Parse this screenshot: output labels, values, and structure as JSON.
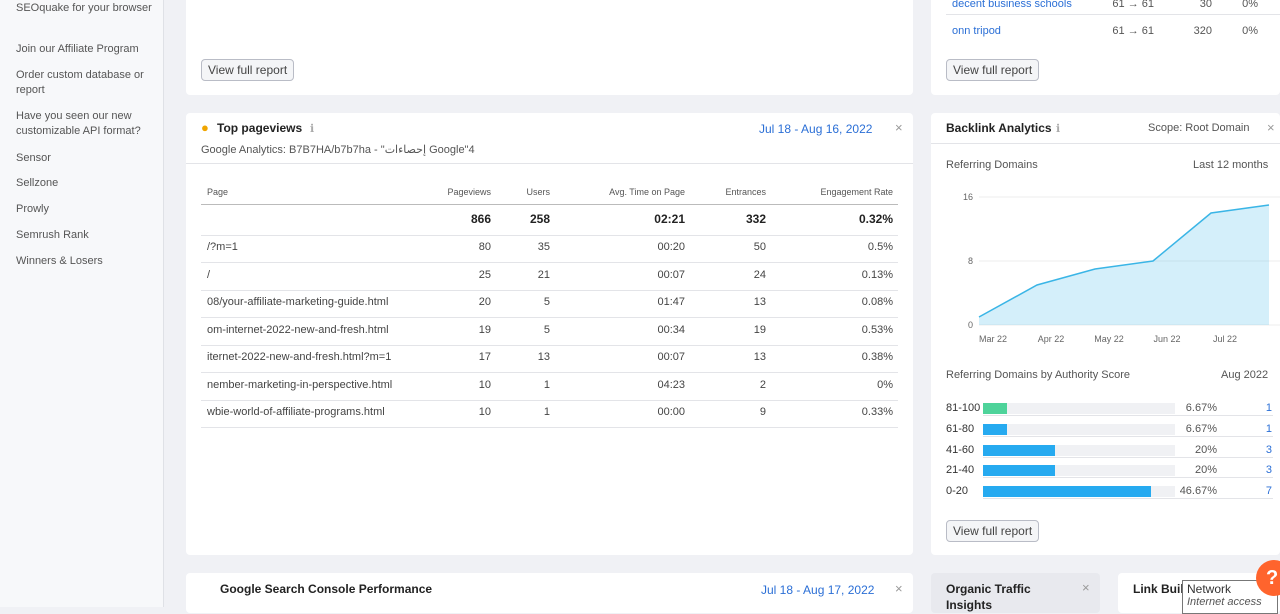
{
  "sidebar": {
    "items": [
      "SEOquake for your browser",
      "Join our Affiliate Program",
      "Order custom database or report",
      "Have you seen our new customizable API format?",
      "Sensor",
      "Sellzone",
      "Prowly",
      "Semrush Rank",
      "Winners & Losers"
    ]
  },
  "top_left": {
    "button": "View full report"
  },
  "top_right": {
    "rows": [
      {
        "keyword": "decent business schools",
        "position": "61 → 61",
        "volume": 30,
        "share": "0%"
      },
      {
        "keyword": "onn tripod",
        "position": "61 → 61",
        "volume": 320,
        "share": "0%"
      }
    ],
    "button": "View full report"
  },
  "pageviews": {
    "title": "Top pageviews",
    "date": "Jul 18 - Aug 16, 2022",
    "subtitle": "Google Analytics: B7B7HA/b7b7ha - \"إحصاءات Google\"4",
    "columns": [
      "Page",
      "Pageviews",
      "Users",
      "Avg. Time on Page",
      "Entrances",
      "Engagement Rate"
    ],
    "total": [
      866,
      258,
      "02:21",
      332,
      "0.32%"
    ],
    "rows": [
      [
        "/?m=1",
        80,
        35,
        "00:20",
        50,
        "0.5%"
      ],
      [
        "/",
        25,
        21,
        "00:07",
        24,
        "0.13%"
      ],
      [
        "08/your-affiliate-marketing-guide.html",
        20,
        5,
        "01:47",
        13,
        "0.08%"
      ],
      [
        "om-internet-2022-new-and-fresh.html",
        19,
        5,
        "00:34",
        19,
        "0.53%"
      ],
      [
        "iternet-2022-new-and-fresh.html?m=1",
        17,
        13,
        "00:07",
        13,
        "0.38%"
      ],
      [
        "nember-marketing-in-perspective.html",
        10,
        1,
        "04:23",
        2,
        "0%"
      ],
      [
        "wbie-world-of-affiliate-programs.html",
        10,
        1,
        "00:00",
        9,
        "0.33%"
      ]
    ]
  },
  "backlinks": {
    "title": "Backlink Analytics",
    "scope": "Scope: Root Domain",
    "referring_title": "Referring Domains",
    "period": "Last 12 months",
    "chart": {
      "type": "area",
      "categories": [
        "Mar 22",
        "Apr 22",
        "May 22",
        "Jun 22",
        "Jul 22",
        null
      ],
      "values": [
        1,
        5,
        7,
        8,
        14,
        15
      ],
      "ylim": [
        0,
        16
      ],
      "yticks": [
        0,
        8,
        16
      ],
      "color": "#3ab5e6"
    },
    "authority": {
      "title": "Referring Domains by Authority Score",
      "period": "Aug 2022",
      "rows": [
        {
          "range": "81-100",
          "pct": 6.67,
          "pct_label": "6.67%",
          "count": 1,
          "color": "#4ed39a"
        },
        {
          "range": "61-80",
          "pct": 6.67,
          "pct_label": "6.67%",
          "count": 1,
          "color": "#26aaf0"
        },
        {
          "range": "41-60",
          "pct": 20,
          "pct_label": "20%",
          "count": 3,
          "color": "#26aaf0"
        },
        {
          "range": "21-40",
          "pct": 20,
          "pct_label": "20%",
          "count": 3,
          "color": "#26aaf0"
        },
        {
          "range": "0-20",
          "pct": 46.67,
          "pct_label": "46.67%",
          "count": 7,
          "color": "#26aaf0"
        }
      ]
    },
    "button": "View full report"
  },
  "gsc": {
    "title": "Google Search Console Performance",
    "date": "Jul 18 - Aug 17, 2022"
  },
  "organic": {
    "title": "Organic Traffic Insights"
  },
  "link": {
    "title": "Link Buil"
  },
  "tooltip": {
    "title": "Network",
    "subtitle": "Internet access"
  },
  "help": "?"
}
